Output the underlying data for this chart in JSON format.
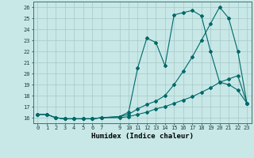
{
  "xlabel": "Humidex (Indice chaleur)",
  "bg_color": "#c8e8e8",
  "grid_color": "#a8c8c8",
  "line_color": "#006868",
  "xlim": [
    -0.5,
    23.5
  ],
  "ylim": [
    15.5,
    26.5
  ],
  "xticks": [
    0,
    1,
    2,
    3,
    4,
    5,
    6,
    7,
    9,
    10,
    11,
    12,
    13,
    14,
    15,
    16,
    17,
    18,
    19,
    20,
    21,
    22,
    23
  ],
  "yticks": [
    16,
    17,
    18,
    19,
    20,
    21,
    22,
    23,
    24,
    25,
    26
  ],
  "line1_x": [
    0,
    1,
    2,
    3,
    4,
    5,
    6,
    7,
    9,
    10,
    11,
    12,
    13,
    14,
    15,
    16,
    17,
    18,
    19,
    20,
    21,
    22,
    23
  ],
  "line1_y": [
    16.3,
    16.3,
    16.0,
    15.9,
    15.9,
    15.9,
    15.9,
    16.0,
    16.1,
    16.5,
    20.5,
    23.2,
    22.8,
    20.7,
    25.3,
    25.5,
    25.7,
    25.2,
    22.0,
    19.2,
    19.0,
    18.5,
    17.3
  ],
  "line2_x": [
    0,
    1,
    2,
    3,
    4,
    5,
    6,
    7,
    9,
    10,
    11,
    12,
    13,
    14,
    15,
    16,
    17,
    18,
    19,
    20,
    21,
    22,
    23
  ],
  "line2_y": [
    16.3,
    16.3,
    16.0,
    15.9,
    15.9,
    15.9,
    15.9,
    16.0,
    16.1,
    16.3,
    16.8,
    17.2,
    17.5,
    18.0,
    19.0,
    20.2,
    21.5,
    23.0,
    24.5,
    26.0,
    25.0,
    22.0,
    17.3
  ],
  "line3_x": [
    0,
    1,
    2,
    3,
    4,
    5,
    6,
    7,
    9,
    10,
    11,
    12,
    13,
    14,
    15,
    16,
    17,
    18,
    19,
    20,
    21,
    22,
    23
  ],
  "line3_y": [
    16.3,
    16.3,
    16.0,
    15.9,
    15.9,
    15.9,
    15.9,
    16.0,
    16.0,
    16.1,
    16.3,
    16.5,
    16.8,
    17.0,
    17.3,
    17.6,
    17.9,
    18.3,
    18.7,
    19.2,
    19.5,
    19.8,
    17.3
  ]
}
